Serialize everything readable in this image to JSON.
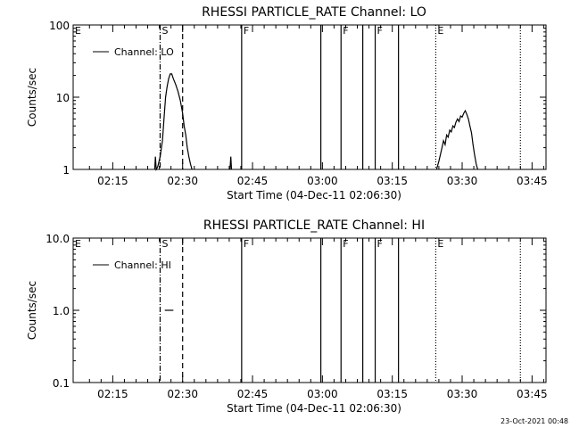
{
  "footer": {
    "timestamp": "23-Oct-2021 00:48"
  },
  "chart_data": [
    {
      "type": "line",
      "title": "RHESSI PARTICLE_RATE Channel: LO",
      "xlabel": "Start Time (04-Dec-11 02:06:30)",
      "ylabel": "Counts/sec",
      "y_scale": "log",
      "ylim": [
        1,
        100
      ],
      "y_ticks": [
        {
          "value": 1,
          "label": "1"
        },
        {
          "value": 10,
          "label": "10"
        },
        {
          "value": 100,
          "label": "100"
        }
      ],
      "xlim": [
        "02:06:30",
        "03:48:00"
      ],
      "x_ticks": [
        "02:15",
        "02:30",
        "02:45",
        "03:00",
        "03:15",
        "03:30",
        "03:45"
      ],
      "legend": {
        "position": "top-left",
        "entries": [
          "Channel: LO"
        ]
      },
      "series": [
        {
          "name": "Channel: LO",
          "segments": [
            [
              [
                "02:24:00",
                1
              ],
              [
                "02:24:10",
                1.5
              ],
              [
                "02:24:20",
                1
              ],
              [
                "02:24:40",
                1.1
              ],
              [
                "02:25:10",
                1.5
              ],
              [
                "02:25:40",
                2.5
              ],
              [
                "02:26:00",
                5
              ],
              [
                "02:26:20",
                10
              ],
              [
                "02:26:40",
                14
              ],
              [
                "02:27:00",
                18
              ],
              [
                "02:27:20",
                21
              ],
              [
                "02:27:40",
                21
              ],
              [
                "02:28:00",
                18
              ],
              [
                "02:28:30",
                15
              ],
              [
                "02:29:00",
                12
              ],
              [
                "02:29:30",
                9
              ],
              [
                "02:30:00",
                6
              ],
              [
                "02:30:20",
                4
              ],
              [
                "02:30:40",
                3
              ],
              [
                "02:31:00",
                2
              ],
              [
                "02:31:20",
                1.5
              ],
              [
                "02:31:40",
                1.2
              ],
              [
                "02:32:00",
                1
              ]
            ],
            [
              [
                "02:40:10",
                1
              ],
              [
                "02:40:20",
                1.5
              ],
              [
                "02:40:30",
                1
              ]
            ],
            [
              [
                "03:24:30",
                1
              ],
              [
                "03:25:00",
                1.3
              ],
              [
                "03:25:20",
                1.6
              ],
              [
                "03:25:40",
                2
              ],
              [
                "03:26:00",
                2.5
              ],
              [
                "03:26:20",
                2.2
              ],
              [
                "03:26:40",
                3
              ],
              [
                "03:27:00",
                2.8
              ],
              [
                "03:27:20",
                3.5
              ],
              [
                "03:27:40",
                3.3
              ],
              [
                "03:28:00",
                4
              ],
              [
                "03:28:20",
                3.8
              ],
              [
                "03:28:40",
                4.5
              ],
              [
                "03:29:00",
                5
              ],
              [
                "03:29:20",
                4.6
              ],
              [
                "03:29:40",
                5.5
              ],
              [
                "03:30:00",
                5.3
              ],
              [
                "03:30:20",
                6
              ],
              [
                "03:30:40",
                6.5
              ],
              [
                "03:31:00",
                5.8
              ],
              [
                "03:31:20",
                5
              ],
              [
                "03:31:40",
                4
              ],
              [
                "03:32:00",
                3.2
              ],
              [
                "03:32:20",
                2.2
              ],
              [
                "03:32:40",
                1.6
              ],
              [
                "03:33:00",
                1.2
              ],
              [
                "03:33:20",
                1
              ]
            ]
          ]
        }
      ],
      "markers": [
        {
          "time": "02:06:30",
          "label": "E",
          "style": "none"
        },
        {
          "time": "02:25:10",
          "label": "S",
          "style": "dashdot"
        },
        {
          "time": "02:30:00",
          "label": "",
          "style": "dashed"
        },
        {
          "time": "02:42:40",
          "label": "F",
          "style": "solid"
        },
        {
          "time": "02:59:40",
          "label": "",
          "style": "solid"
        },
        {
          "time": "03:04:00",
          "label": "F",
          "style": "solid"
        },
        {
          "time": "03:08:40",
          "label": "",
          "style": "solid"
        },
        {
          "time": "03:11:20",
          "label": "F",
          "style": "solid"
        },
        {
          "time": "03:16:20",
          "label": "",
          "style": "solid"
        },
        {
          "time": "03:24:20",
          "label": "E",
          "style": "dotted"
        },
        {
          "time": "03:42:30",
          "label": "",
          "style": "dotted"
        }
      ]
    },
    {
      "type": "line",
      "title": "RHESSI PARTICLE_RATE Channel: HI",
      "xlabel": "Start Time (04-Dec-11 02:06:30)",
      "ylabel": "Counts/sec",
      "y_scale": "log",
      "ylim": [
        0.1,
        10
      ],
      "y_ticks": [
        {
          "value": 0.1,
          "label": "0.1"
        },
        {
          "value": 1,
          "label": "1.0"
        },
        {
          "value": 10,
          "label": "10.0"
        }
      ],
      "xlim": [
        "02:06:30",
        "03:48:00"
      ],
      "x_ticks": [
        "02:15",
        "02:30",
        "02:45",
        "03:00",
        "03:15",
        "03:30",
        "03:45"
      ],
      "legend": {
        "position": "top-left",
        "entries": [
          "Channel: HI"
        ]
      },
      "series": [
        {
          "name": "Channel: HI",
          "segments": [
            [
              [
                "02:26:10",
                1
              ],
              [
                "02:28:00",
                1
              ]
            ]
          ]
        }
      ],
      "markers": [
        {
          "time": "02:06:30",
          "label": "E",
          "style": "none"
        },
        {
          "time": "02:25:10",
          "label": "S",
          "style": "dashdot"
        },
        {
          "time": "02:30:00",
          "label": "",
          "style": "dashed"
        },
        {
          "time": "02:42:40",
          "label": "F",
          "style": "solid"
        },
        {
          "time": "02:59:40",
          "label": "",
          "style": "solid"
        },
        {
          "time": "03:04:00",
          "label": "F",
          "style": "solid"
        },
        {
          "time": "03:08:40",
          "label": "",
          "style": "solid"
        },
        {
          "time": "03:11:20",
          "label": "F",
          "style": "solid"
        },
        {
          "time": "03:16:20",
          "label": "",
          "style": "solid"
        },
        {
          "time": "03:24:20",
          "label": "E",
          "style": "dotted"
        },
        {
          "time": "03:42:30",
          "label": "",
          "style": "dotted"
        }
      ]
    }
  ]
}
